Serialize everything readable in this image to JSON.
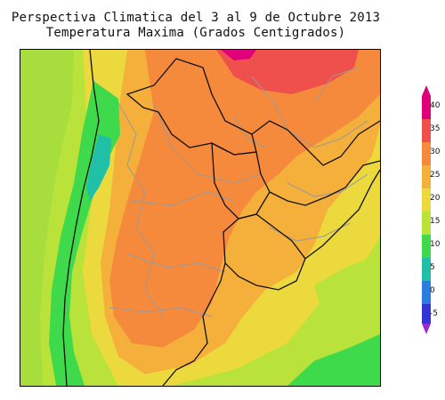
{
  "title": {
    "line1": "Perspectiva Climatica del 3 al 9 de Octubre 2013",
    "line2": "Temperatura Maxima (Grados Centigrados)"
  },
  "colorbar": {
    "labels": [
      "40",
      "35",
      "30",
      "25",
      "20",
      "15",
      "10",
      "5",
      "0",
      "-5"
    ],
    "colors": [
      "#e0007a",
      "#f0504c",
      "#f58a3c",
      "#f4b03a",
      "#ecd93e",
      "#b9e33a",
      "#3fd94c",
      "#1fbfa8",
      "#2b7de0",
      "#3333d6",
      "#9b2ad6"
    ]
  }
}
